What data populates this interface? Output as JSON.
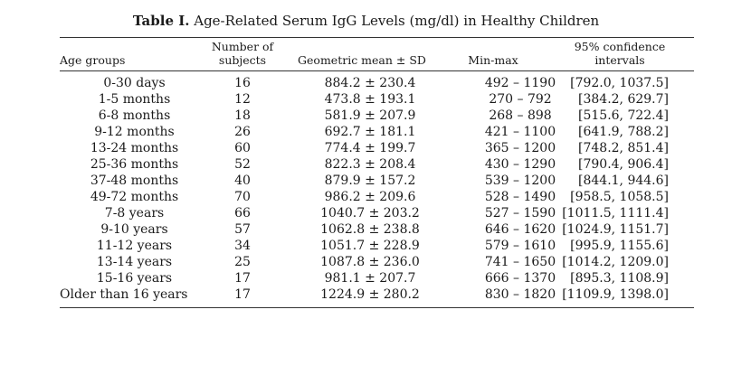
{
  "caption": {
    "label": "Table I.",
    "title": "Age-Related Serum IgG Levels (mg/dl) in Healthy Children"
  },
  "headers": {
    "age": "Age groups",
    "n_line1": "Number of",
    "n_line2": "subjects",
    "gm": "Geometric mean ± SD",
    "mm": "Min-max",
    "ci_line1": "95% confidence",
    "ci_line2": "intervals"
  },
  "rows": [
    {
      "age": "0-30 days",
      "n": "16",
      "gm": "884.2 ± 230.4",
      "mm": "492 – 1190",
      "ci": "[792.0, 1037.5]"
    },
    {
      "age": "1-5 months",
      "n": "12",
      "gm": "473.8 ± 193.1",
      "mm": "270 – 792",
      "ci": "[384.2, 629.7]"
    },
    {
      "age": "6-8 months",
      "n": "18",
      "gm": "581.9 ± 207.9",
      "mm": "268 – 898",
      "ci": "[515.6, 722.4]"
    },
    {
      "age": "9-12 months",
      "n": "26",
      "gm": "692.7 ± 181.1",
      "mm": "421 – 1100",
      "ci": "[641.9, 788.2]"
    },
    {
      "age": "13-24 months",
      "n": "60",
      "gm": "774.4 ± 199.7",
      "mm": "365 – 1200",
      "ci": "[748.2, 851.4]"
    },
    {
      "age": "25-36 months",
      "n": "52",
      "gm": "822.3 ± 208.4",
      "mm": "430 – 1290",
      "ci": "[790.4, 906.4]"
    },
    {
      "age": "37-48 months",
      "n": "40",
      "gm": "879.9 ± 157.2",
      "mm": "539 – 1200",
      "ci": "[844.1, 944.6]"
    },
    {
      "age": "49-72 months",
      "n": "70",
      "gm": "986.2 ± 209.6",
      "mm": "528 – 1490",
      "ci": "[958.5, 1058.5]"
    },
    {
      "age": "7-8 years",
      "n": "66",
      "gm": "1040.7 ± 203.2",
      "mm": "527 – 1590",
      "ci": "[1011.5, 1111.4]"
    },
    {
      "age": "9-10 years",
      "n": "57",
      "gm": "1062.8 ± 238.8",
      "mm": "646 – 1620",
      "ci": "[1024.9, 1151.7]"
    },
    {
      "age": "11-12 years",
      "n": "34",
      "gm": "1051.7 ± 228.9",
      "mm": "579 – 1610",
      "ci": "[995.9, 1155.6]"
    },
    {
      "age": "13-14 years",
      "n": "25",
      "gm": "1087.8 ± 236.0",
      "mm": "741 – 1650",
      "ci": "[1014.2, 1209.0]"
    },
    {
      "age": "15-16 years",
      "n": "17",
      "gm": "981.1 ± 207.7",
      "mm": "666 – 1370",
      "ci": "[895.3, 1108.9]"
    },
    {
      "age": "Older than 16 years",
      "n": "17",
      "gm": "1224.9 ± 280.2",
      "mm": "830 – 1820",
      "ci": "[1109.9, 1398.0]"
    }
  ]
}
